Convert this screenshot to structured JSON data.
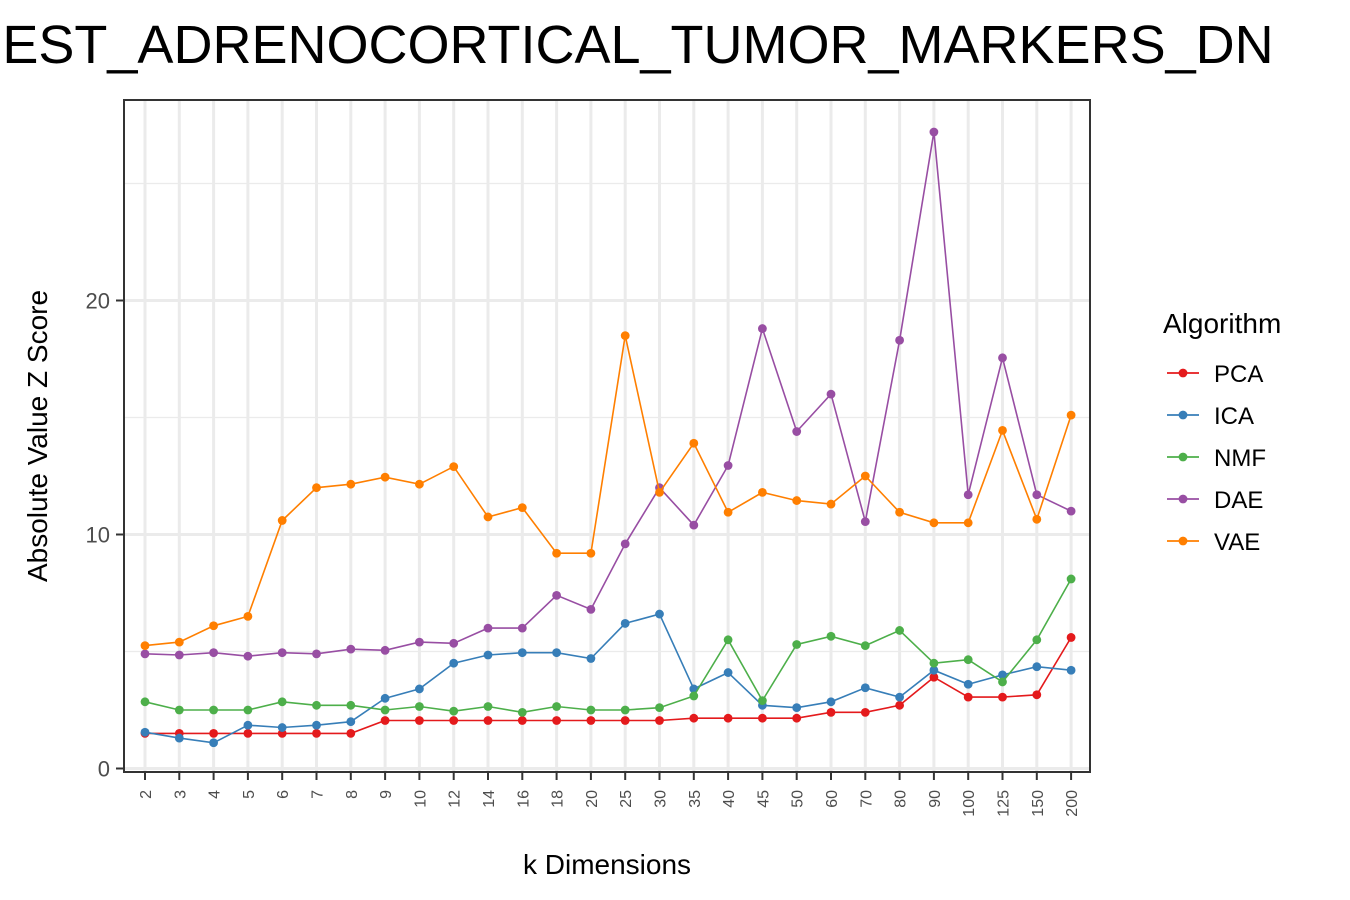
{
  "chart_data": {
    "type": "line",
    "title": "EST_ADRENOCORTICAL_TUMOR_MARKERS_DN",
    "xlabel": "k Dimensions",
    "ylabel": "Absolute Value Z Score",
    "categories": [
      "2",
      "3",
      "4",
      "5",
      "6",
      "7",
      "8",
      "9",
      "10",
      "12",
      "14",
      "16",
      "18",
      "20",
      "25",
      "30",
      "35",
      "40",
      "45",
      "50",
      "60",
      "70",
      "80",
      "90",
      "100",
      "125",
      "150",
      "200"
    ],
    "ylim": [
      0,
      28.5
    ],
    "yticks": [
      0,
      10,
      20
    ],
    "grid": true,
    "legend": {
      "title": "Algorithm",
      "position": "right"
    },
    "series": [
      {
        "name": "PCA",
        "color": "#e41a1c",
        "values": [
          1.5,
          1.5,
          1.5,
          1.5,
          1.5,
          1.5,
          1.5,
          2.05,
          2.05,
          2.05,
          2.05,
          2.05,
          2.05,
          2.05,
          2.05,
          2.05,
          2.15,
          2.15,
          2.15,
          2.15,
          2.4,
          2.4,
          2.7,
          3.9,
          3.05,
          3.05,
          3.15,
          5.6
        ]
      },
      {
        "name": "ICA",
        "color": "#377eb8",
        "values": [
          1.55,
          1.3,
          1.1,
          1.85,
          1.75,
          1.85,
          2.0,
          3.0,
          3.4,
          4.5,
          4.85,
          4.95,
          4.95,
          4.7,
          6.2,
          6.6,
          3.4,
          4.1,
          2.7,
          2.6,
          2.85,
          3.45,
          3.05,
          4.2,
          3.6,
          4.0,
          4.35,
          4.2
        ]
      },
      {
        "name": "NMF",
        "color": "#4daf4a",
        "values": [
          2.85,
          2.5,
          2.5,
          2.5,
          2.85,
          2.7,
          2.7,
          2.5,
          2.65,
          2.45,
          2.65,
          2.4,
          2.65,
          2.5,
          2.5,
          2.6,
          3.1,
          5.5,
          2.9,
          5.3,
          5.65,
          5.25,
          5.9,
          4.5,
          4.65,
          3.7,
          5.5,
          8.1
        ]
      },
      {
        "name": "DAE",
        "color": "#984ea3",
        "values": [
          4.9,
          4.85,
          4.95,
          4.8,
          4.95,
          4.9,
          5.1,
          5.05,
          5.4,
          5.35,
          6.0,
          6.0,
          7.4,
          6.8,
          9.6,
          12.0,
          10.4,
          12.95,
          18.8,
          14.4,
          16.0,
          10.55,
          18.3,
          27.2,
          11.7,
          17.55,
          11.7,
          11.0
        ]
      },
      {
        "name": "VAE",
        "color": "#ff7f00",
        "values": [
          5.25,
          5.4,
          6.1,
          6.5,
          10.6,
          12.0,
          12.15,
          12.45,
          12.15,
          12.9,
          10.75,
          11.15,
          9.2,
          9.2,
          18.5,
          11.8,
          13.9,
          10.95,
          11.8,
          11.45,
          11.3,
          12.5,
          10.95,
          10.5,
          10.5,
          14.45,
          10.65,
          15.1
        ]
      }
    ]
  }
}
